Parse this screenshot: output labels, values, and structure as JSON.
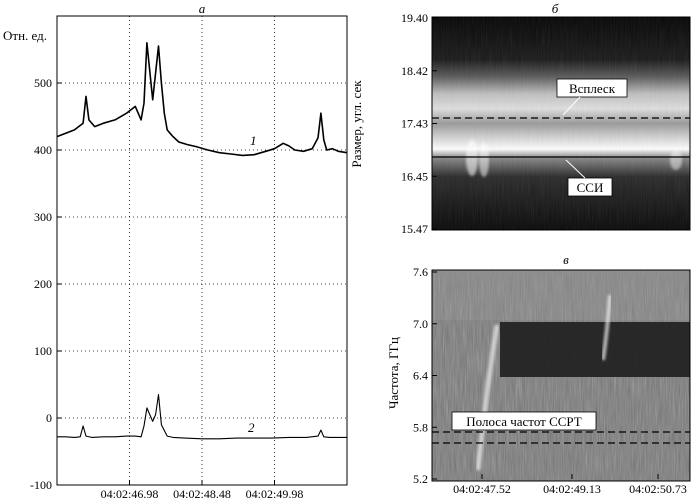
{
  "chart_data": [
    {
      "type": "line",
      "panel_label": "а",
      "ylabel": "Отн. ед.",
      "ylim": [
        -100,
        600
      ],
      "yticks": [
        -100,
        0,
        100,
        200,
        300,
        400,
        500
      ],
      "xticks": [
        "04:02:46.98",
        "04:02:48.48",
        "04:02:49.98"
      ],
      "grid": "dotted",
      "series": [
        {
          "name": "1",
          "x": [
            0,
            0.03,
            0.06,
            0.09,
            0.1,
            0.11,
            0.13,
            0.16,
            0.2,
            0.24,
            0.27,
            0.29,
            0.3,
            0.31,
            0.33,
            0.35,
            0.36,
            0.37,
            0.38,
            0.39,
            0.4,
            0.42,
            0.45,
            0.48,
            0.52,
            0.56,
            0.6,
            0.64,
            0.68,
            0.72,
            0.75,
            0.78,
            0.8,
            0.82,
            0.85,
            0.88,
            0.9,
            0.91,
            0.92,
            0.93,
            0.95,
            0.97,
            1.0
          ],
          "values": [
            420,
            425,
            430,
            440,
            480,
            445,
            435,
            440,
            445,
            455,
            465,
            445,
            470,
            560,
            475,
            555,
            500,
            455,
            430,
            425,
            420,
            412,
            408,
            405,
            400,
            396,
            394,
            392,
            393,
            398,
            402,
            410,
            406,
            400,
            398,
            402,
            418,
            455,
            415,
            400,
            402,
            398,
            396
          ]
        },
        {
          "name": "2",
          "x": [
            0,
            0.03,
            0.06,
            0.08,
            0.09,
            0.1,
            0.12,
            0.16,
            0.2,
            0.24,
            0.27,
            0.29,
            0.3,
            0.31,
            0.33,
            0.34,
            0.35,
            0.36,
            0.38,
            0.4,
            0.44,
            0.5,
            0.56,
            0.62,
            0.68,
            0.74,
            0.8,
            0.86,
            0.9,
            0.91,
            0.92,
            0.94,
            0.97,
            1.0
          ],
          "values": [
            -28,
            -28,
            -29,
            -28,
            -12,
            -27,
            -29,
            -28,
            -28,
            -27,
            -27,
            -28,
            -12,
            15,
            -5,
            5,
            35,
            -10,
            -27,
            -29,
            -30,
            -31,
            -31,
            -30,
            -30,
            -30,
            -29,
            -29,
            -27,
            -18,
            -28,
            -29,
            -29,
            -29
          ]
        }
      ]
    },
    {
      "type": "heatmap",
      "panel_label": "б",
      "ylabel": "Размер, угл. сек",
      "yticks": [
        "19.40",
        "18.42",
        "17.43",
        "16.45",
        "15.47"
      ],
      "annotations": [
        "Всплеск",
        "ССИ"
      ]
    },
    {
      "type": "heatmap",
      "panel_label": "в",
      "ylabel": "Частота, ГГц",
      "yticks": [
        "7.6",
        "7.0",
        "6.4",
        "5.8",
        "5.2"
      ],
      "xticks": [
        "04:02:47.52",
        "04:02:49.13",
        "04:02:50.73"
      ],
      "annotations": [
        "Полоса частот ССРТ"
      ]
    }
  ]
}
